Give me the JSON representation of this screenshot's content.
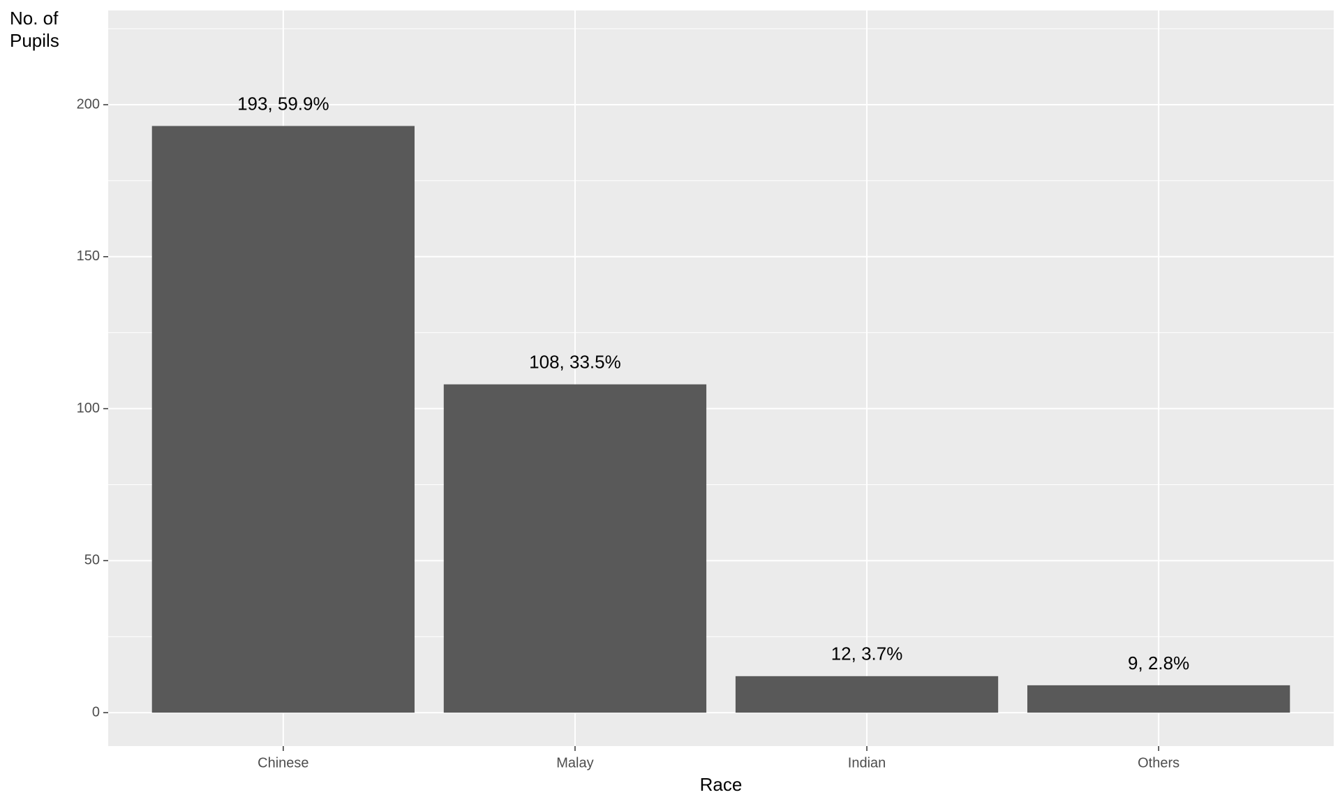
{
  "chart_data": {
    "type": "bar",
    "x_label": "Race",
    "y_label": "No. of Pupils",
    "categories": [
      "Chinese",
      "Malay",
      "Indian",
      "Others"
    ],
    "values": [
      193,
      108,
      12,
      9
    ],
    "value_labels": [
      "193, 59.9%",
      "108, 33.5%",
      "12, 3.7%",
      "9, 2.8%"
    ],
    "color": "#595959",
    "ylim": [
      -11,
      231
    ],
    "yticks": [
      0,
      50,
      100,
      150,
      200
    ],
    "minor_yticks": [
      25,
      75,
      125,
      175,
      225
    ],
    "grid": true
  }
}
